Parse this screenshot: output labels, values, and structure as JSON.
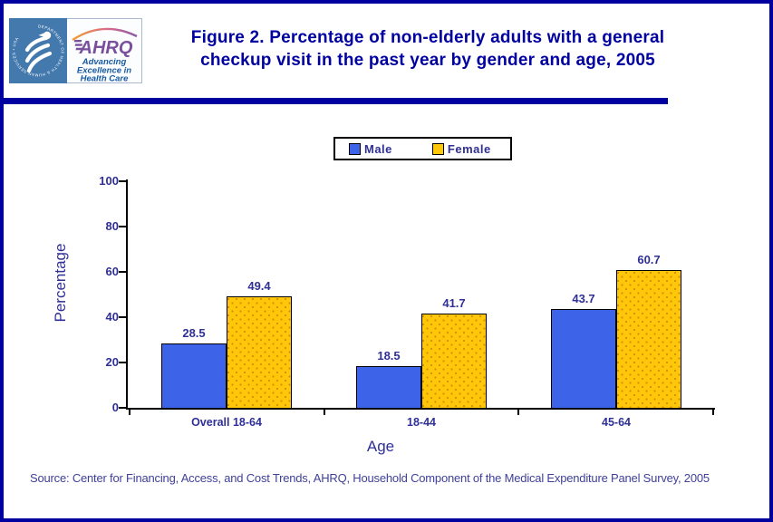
{
  "header": {
    "title": {
      "line1": "Figure 2. Percentage of non-elderly adults with a general",
      "line2": "checkup visit in the past year by gender and age, 2005"
    },
    "hhs_seal_text": "DEPARTMENT OF HEALTH & HUMAN SERVICES • USA",
    "ahrq_acronym": "AHRQ",
    "ahrq_tagline": [
      "Advancing",
      "Excellence in",
      "Health Care"
    ]
  },
  "chart_data": {
    "type": "bar",
    "title": "Figure 2. Percentage of non-elderly adults with a general checkup visit in the past year by gender and age, 2005",
    "categories": [
      "Overall 18-64",
      "18-44",
      "45-64"
    ],
    "series": [
      {
        "name": "Male",
        "color": "#3C63E8",
        "values": [
          28.5,
          18.5,
          43.7
        ]
      },
      {
        "name": "Female",
        "color": "#FFC70A",
        "values": [
          49.4,
          41.7,
          60.7
        ]
      }
    ],
    "xlabel": "Age",
    "ylabel": "Percentage",
    "ylim": [
      0,
      100
    ],
    "yticks": [
      0,
      20,
      40,
      60,
      80,
      100
    ],
    "grid": false,
    "legend_position": "top-center",
    "bar_value_labels": true
  },
  "source": {
    "text": "Source: Center for Financing, Access, and Cost Trends, AHRQ, Household Component of the Medical Expenditure Panel Survey, 2005"
  },
  "colors": {
    "page_border": "#0000A0",
    "title_text": "#0000A0",
    "chart_text": "#2F2F96",
    "axis_line": "#000000",
    "male_bar": "#3C63E8",
    "female_bar": "#FFC70A",
    "female_bar_dots": "#D68C00",
    "hhs_blue": "#4379AD",
    "ahrq_purple": "#7A4F9C",
    "ahrq_tagline_blue": "#17599F"
  }
}
